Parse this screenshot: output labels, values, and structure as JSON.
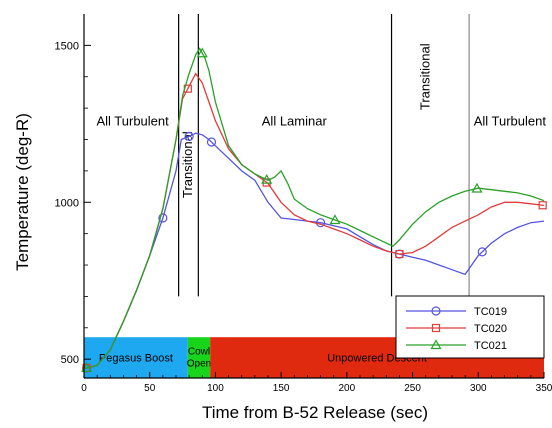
{
  "chart_data": {
    "type": "line",
    "xlabel": "Time from B-52 Release (sec)",
    "ylabel": "Temperature (deg-R)",
    "xlim": [
      0,
      350
    ],
    "ylim": [
      440,
      1600
    ],
    "x_ticks": [
      {
        "value": 0,
        "label": "0"
      },
      {
        "value": 50,
        "label": "50"
      },
      {
        "value": 100,
        "label": "100"
      },
      {
        "value": 150,
        "label": "150"
      },
      {
        "value": 200,
        "label": "200"
      },
      {
        "value": 250,
        "label": "250"
      },
      {
        "value": 300,
        "label": "300"
      },
      {
        "value": 350,
        "label": "350"
      }
    ],
    "y_ticks": [
      {
        "value": 500,
        "label": "500"
      },
      {
        "value": 1000,
        "label": "1000"
      },
      {
        "value": 1500,
        "label": "1500"
      }
    ],
    "grid": false,
    "legend_position": "bottom-right",
    "phases": [
      {
        "label": "Pegasus Boost",
        "start": 0,
        "end": 79,
        "color": "#1ea8f0"
      },
      {
        "label": "Cowl\nOpen",
        "start": 79,
        "end": 96,
        "color": "#18d41a"
      },
      {
        "label": "Unpowered Descent",
        "start": 96,
        "end": 350,
        "color": "#e02a10"
      }
    ],
    "phase_band": {
      "y0": 440,
      "y1": 570
    },
    "regime_lines": [
      {
        "x": 72
      },
      {
        "x": 87
      },
      {
        "x": 234
      },
      {
        "x": 293
      }
    ],
    "regime_labels": [
      {
        "text": "All Turbulent",
        "x": 37,
        "y": 1245,
        "rotated": false
      },
      {
        "text": "Transitional",
        "x": 82,
        "y": 1120,
        "rotated": true
      },
      {
        "text": "All Laminar",
        "x": 160,
        "y": 1245,
        "rotated": false
      },
      {
        "text": "Transitional",
        "x": 263,
        "y": 1400,
        "rotated": true
      },
      {
        "text": "All Turbulent",
        "x": 324,
        "y": 1245,
        "rotated": false
      }
    ],
    "series": [
      {
        "name": "TC019",
        "color": "#5555e0",
        "marker": "circle",
        "x": [
          0,
          10,
          20,
          30,
          40,
          50,
          60,
          70,
          74,
          80,
          85,
          90,
          95,
          100,
          110,
          120,
          130,
          140,
          150,
          160,
          170,
          180,
          190,
          200,
          210,
          220,
          230,
          240,
          250,
          260,
          270,
          280,
          290,
          300,
          310,
          320,
          330,
          340,
          350
        ],
        "values": [
          470,
          480,
          530,
          620,
          720,
          830,
          950,
          1100,
          1200,
          1210,
          1220,
          1215,
          1200,
          1180,
          1140,
          1100,
          1070,
          1000,
          950,
          945,
          940,
          935,
          925,
          915,
          890,
          865,
          845,
          835,
          825,
          815,
          800,
          785,
          770,
          830,
          870,
          900,
          920,
          935,
          940
        ],
        "marker_x": [
          2,
          60,
          80,
          97,
          180,
          240,
          303
        ]
      },
      {
        "name": "TC020",
        "color": "#e03c3c",
        "marker": "square",
        "x": [
          0,
          10,
          20,
          30,
          40,
          50,
          60,
          70,
          75,
          80,
          85,
          90,
          95,
          100,
          110,
          120,
          130,
          140,
          150,
          160,
          170,
          180,
          190,
          200,
          210,
          220,
          230,
          240,
          250,
          260,
          270,
          280,
          290,
          300,
          310,
          320,
          330,
          340,
          350
        ],
        "values": [
          470,
          480,
          530,
          620,
          720,
          830,
          980,
          1200,
          1330,
          1370,
          1410,
          1380,
          1320,
          1260,
          1170,
          1120,
          1090,
          1060,
          1000,
          960,
          940,
          930,
          915,
          900,
          880,
          860,
          845,
          835,
          840,
          860,
          890,
          920,
          940,
          960,
          985,
          1000,
          1000,
          995,
          990
        ],
        "marker_x": [
          2,
          79,
          139,
          240,
          349
        ]
      },
      {
        "name": "TC021",
        "color": "#2aa02a",
        "marker": "triangle",
        "x": [
          0,
          10,
          20,
          30,
          40,
          50,
          60,
          70,
          75,
          80,
          85,
          88,
          92,
          95,
          100,
          110,
          120,
          130,
          140,
          145,
          150,
          155,
          160,
          170,
          180,
          190,
          200,
          210,
          220,
          230,
          235,
          240,
          250,
          260,
          270,
          280,
          290,
          300,
          310,
          320,
          330,
          340,
          350
        ],
        "values": [
          470,
          480,
          530,
          620,
          720,
          830,
          980,
          1200,
          1340,
          1410,
          1470,
          1490,
          1460,
          1420,
          1320,
          1180,
          1120,
          1090,
          1070,
          1080,
          1100,
          1060,
          1010,
          980,
          960,
          945,
          930,
          910,
          890,
          870,
          860,
          880,
          930,
          970,
          1000,
          1020,
          1035,
          1045,
          1040,
          1035,
          1030,
          1020,
          1005
        ],
        "marker_x": [
          2,
          90,
          139,
          191,
          299
        ]
      }
    ]
  }
}
